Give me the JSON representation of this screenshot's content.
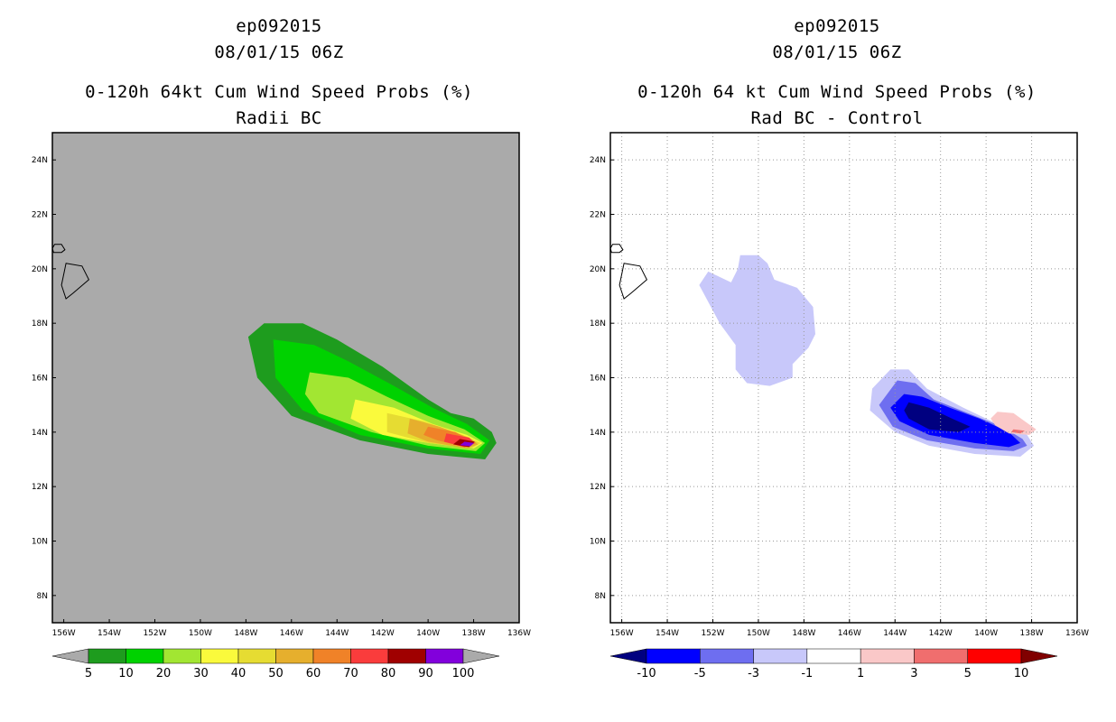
{
  "panels": [
    {
      "storm": "ep092015",
      "datetime": "08/01/15 06Z",
      "title": "0-120h 64kt Cum Wind Speed Probs (%)",
      "subtitle": "Radii BC"
    },
    {
      "storm": "ep092015",
      "datetime": "08/01/15 06Z",
      "title": "0-120h 64 kt Cum Wind Speed Probs (%)",
      "subtitle": "Rad BC - Control"
    }
  ],
  "chart_data": [
    {
      "type": "heatmap",
      "title": "0-120h 64kt Cum Wind Speed Probs (%)",
      "subtitle": "Radii BC",
      "xlim": [
        -156.5,
        -136
      ],
      "ylim": [
        7,
        25
      ],
      "x_ticks": [
        -156,
        -154,
        -152,
        -150,
        -148,
        -146,
        -144,
        -142,
        -140,
        -138,
        -136
      ],
      "x_tick_labels": [
        "156W",
        "154W",
        "152W",
        "150W",
        "148W",
        "146W",
        "144W",
        "142W",
        "140W",
        "138W",
        "136W"
      ],
      "y_ticks": [
        8,
        10,
        12,
        14,
        16,
        18,
        20,
        22,
        24
      ],
      "y_tick_labels": [
        "8N",
        "10N",
        "12N",
        "14N",
        "16N",
        "18N",
        "20N",
        "22N",
        "24N"
      ],
      "grid": false,
      "background": "#aaaaaa",
      "contour_levels": [
        5,
        10,
        20,
        30,
        40,
        50,
        60,
        70,
        80,
        90,
        100
      ],
      "colorbar_labels": [
        "5",
        "10",
        "20",
        "30",
        "40",
        "50",
        "60",
        "70",
        "80",
        "90",
        "100"
      ],
      "colors": [
        "#1e9c1e",
        "#00d200",
        "#a2e632",
        "#fafa3c",
        "#e6dc32",
        "#e6af2d",
        "#f08228",
        "#fa3c3c",
        "#a00000",
        "#8200dc"
      ],
      "extend_color": "#aaaaaa",
      "regions": [
        {
          "level": 5,
          "color": "#1e9c1e",
          "points": [
            [
              -147.2,
              18
            ],
            [
              -145.5,
              18
            ],
            [
              -144,
              17.4
            ],
            [
              -142,
              16.4
            ],
            [
              -140,
              15.2
            ],
            [
              -139,
              14.7
            ],
            [
              -138,
              14.5
            ],
            [
              -137.2,
              14
            ],
            [
              -137,
              13.6
            ],
            [
              -137.5,
              13
            ],
            [
              -140,
              13.2
            ],
            [
              -143,
              13.7
            ],
            [
              -146,
              14.6
            ],
            [
              -147.5,
              16
            ],
            [
              -147.9,
              17.5
            ]
          ]
        },
        {
          "level": 10,
          "color": "#00d200",
          "points": [
            [
              -146.8,
              17.4
            ],
            [
              -145,
              17.2
            ],
            [
              -143.5,
              16.6
            ],
            [
              -141.5,
              15.7
            ],
            [
              -139.8,
              14.9
            ],
            [
              -138.3,
              14.3
            ],
            [
              -137.3,
              13.7
            ],
            [
              -137.7,
              13.2
            ],
            [
              -140,
              13.4
            ],
            [
              -143,
              13.9
            ],
            [
              -145.5,
              14.8
            ],
            [
              -146.7,
              16
            ]
          ]
        },
        {
          "level": 20,
          "color": "#a2e632",
          "points": [
            [
              -145.2,
              16.2
            ],
            [
              -143.5,
              16
            ],
            [
              -141.8,
              15.3
            ],
            [
              -140,
              14.6
            ],
            [
              -138.4,
              14.1
            ],
            [
              -137.5,
              13.6
            ],
            [
              -137.9,
              13.3
            ],
            [
              -140,
              13.5
            ],
            [
              -142.5,
              14
            ],
            [
              -144.8,
              14.7
            ],
            [
              -145.4,
              15.4
            ]
          ]
        },
        {
          "level": 30,
          "color": "#fafa3c",
          "points": [
            [
              -143.2,
              15.2
            ],
            [
              -141.5,
              14.9
            ],
            [
              -139.8,
              14.3
            ],
            [
              -138.3,
              13.9
            ],
            [
              -137.6,
              13.6
            ],
            [
              -138,
              13.4
            ],
            [
              -140,
              13.6
            ],
            [
              -142,
              13.9
            ],
            [
              -143.4,
              14.5
            ]
          ]
        },
        {
          "level": 40,
          "color": "#e6dc32",
          "points": [
            [
              -141.8,
              14.7
            ],
            [
              -140.2,
              14.4
            ],
            [
              -138.5,
              13.9
            ],
            [
              -137.7,
              13.6
            ],
            [
              -138.1,
              13.4
            ],
            [
              -140,
              13.6
            ],
            [
              -141.8,
              14
            ]
          ]
        },
        {
          "level": 50,
          "color": "#e6af2d",
          "points": [
            [
              -140.8,
              14.5
            ],
            [
              -139.5,
              14.2
            ],
            [
              -138.2,
              13.8
            ],
            [
              -137.8,
              13.55
            ],
            [
              -138.3,
              13.4
            ],
            [
              -140,
              13.65
            ],
            [
              -140.9,
              13.95
            ]
          ]
        },
        {
          "level": 60,
          "color": "#f08228",
          "points": [
            [
              -140,
              14.2
            ],
            [
              -138.8,
              14
            ],
            [
              -137.9,
              13.6
            ],
            [
              -138.4,
              13.45
            ],
            [
              -139.6,
              13.7
            ],
            [
              -140.2,
              13.9
            ]
          ]
        },
        {
          "level": 70,
          "color": "#fa3c3c",
          "points": [
            [
              -139.2,
              13.95
            ],
            [
              -138.2,
              13.8
            ],
            [
              -137.95,
              13.6
            ],
            [
              -138.4,
              13.45
            ],
            [
              -139.3,
              13.65
            ]
          ]
        },
        {
          "level": 80,
          "color": "#a00000",
          "points": [
            [
              -138.6,
              13.75
            ],
            [
              -137.95,
              13.65
            ],
            [
              -138.2,
              13.45
            ],
            [
              -138.9,
              13.55
            ]
          ]
        },
        {
          "level": 90,
          "color": "#8200dc",
          "points": [
            [
              -138.4,
              13.65
            ],
            [
              -137.98,
              13.6
            ],
            [
              -138.15,
              13.48
            ],
            [
              -138.6,
              13.52
            ]
          ]
        }
      ]
    },
    {
      "type": "heatmap",
      "title": "0-120h 64 kt Cum Wind Speed Probs (%)",
      "subtitle": "Rad BC - Control",
      "xlim": [
        -156.5,
        -136
      ],
      "ylim": [
        7,
        25
      ],
      "x_ticks": [
        -156,
        -154,
        -152,
        -150,
        -148,
        -146,
        -144,
        -142,
        -140,
        -138,
        -136
      ],
      "x_tick_labels": [
        "156W",
        "154W",
        "152W",
        "150W",
        "148W",
        "146W",
        "144W",
        "142W",
        "140W",
        "138W",
        "136W"
      ],
      "y_ticks": [
        8,
        10,
        12,
        14,
        16,
        18,
        20,
        22,
        24
      ],
      "y_tick_labels": [
        "8N",
        "10N",
        "12N",
        "14N",
        "16N",
        "18N",
        "20N",
        "22N",
        "24N"
      ],
      "grid": true,
      "background": "#ffffff",
      "contour_levels": [
        -10,
        -5,
        -3,
        -1,
        1,
        3,
        5,
        10
      ],
      "colorbar_labels": [
        "-10",
        "-5",
        "-3",
        "-1",
        "1",
        "3",
        "5",
        "10"
      ],
      "colors": [
        "#0000ff",
        "#6e6ef0",
        "#c8c8fa",
        "#ffffff",
        "#fac8c8",
        "#f06e6e",
        "#ff0000"
      ],
      "extend_low_color": "#000080",
      "extend_high_color": "#800000",
      "regions": [
        {
          "level": -1,
          "color": "#c8c8fa",
          "points": [
            [
              -150.8,
              20.5
            ],
            [
              -150,
              20.5
            ],
            [
              -149.6,
              20.2
            ],
            [
              -149.3,
              19.6
            ],
            [
              -148.3,
              19.3
            ],
            [
              -147.6,
              18.6
            ],
            [
              -147.5,
              17.6
            ],
            [
              -147.8,
              17.1
            ],
            [
              -148.5,
              16.5
            ],
            [
              -148.5,
              16
            ],
            [
              -149.5,
              15.7
            ],
            [
              -150.5,
              15.8
            ],
            [
              -151,
              16.3
            ],
            [
              -151,
              17.2
            ],
            [
              -151.7,
              18
            ],
            [
              -152.6,
              19.4
            ],
            [
              -152.2,
              19.9
            ],
            [
              -151.2,
              19.5
            ],
            [
              -150.9,
              20
            ]
          ]
        },
        {
          "level": -1,
          "color": "#c8c8fa",
          "points": [
            [
              -144.2,
              16.3
            ],
            [
              -143.4,
              16.3
            ],
            [
              -142.6,
              15.6
            ],
            [
              -141,
              14.9
            ],
            [
              -139.5,
              14.3
            ],
            [
              -138.2,
              13.9
            ],
            [
              -137.9,
              13.5
            ],
            [
              -138.5,
              13.1
            ],
            [
              -140.5,
              13.2
            ],
            [
              -142.5,
              13.5
            ],
            [
              -144,
              14
            ],
            [
              -145.1,
              14.8
            ],
            [
              -145,
              15.6
            ]
          ]
        },
        {
          "level": -3,
          "color": "#6e6ef0",
          "points": [
            [
              -143.9,
              15.9
            ],
            [
              -143.1,
              15.8
            ],
            [
              -142.3,
              15.2
            ],
            [
              -140.8,
              14.7
            ],
            [
              -139.3,
              14.2
            ],
            [
              -138.4,
              13.75
            ],
            [
              -138.2,
              13.5
            ],
            [
              -138.8,
              13.3
            ],
            [
              -140.5,
              13.4
            ],
            [
              -142.6,
              13.7
            ],
            [
              -144.1,
              14.2
            ],
            [
              -144.7,
              15
            ]
          ]
        },
        {
          "level": -5,
          "color": "#0000ff",
          "points": [
            [
              -143.6,
              15.4
            ],
            [
              -142.8,
              15.3
            ],
            [
              -141.6,
              14.9
            ],
            [
              -140.3,
              14.5
            ],
            [
              -139,
              14
            ],
            [
              -138.5,
              13.6
            ],
            [
              -139,
              13.45
            ],
            [
              -140.5,
              13.6
            ],
            [
              -142.5,
              13.9
            ],
            [
              -143.8,
              14.4
            ],
            [
              -144.2,
              14.9
            ]
          ]
        },
        {
          "level": -10,
          "color": "#000080",
          "points": [
            [
              -143.4,
              15.1
            ],
            [
              -142.5,
              14.9
            ],
            [
              -141.5,
              14.5
            ],
            [
              -140.7,
              14.2
            ],
            [
              -141.2,
              14
            ],
            [
              -142.5,
              14.1
            ],
            [
              -143.4,
              14.5
            ],
            [
              -143.6,
              14.8
            ]
          ]
        },
        {
          "level": 1,
          "color": "#fac8c8",
          "points": [
            [
              -139.5,
              14.75
            ],
            [
              -138.8,
              14.7
            ],
            [
              -137.8,
              14.1
            ],
            [
              -138.1,
              13.9
            ],
            [
              -139,
              13.95
            ],
            [
              -139.6,
              14.25
            ],
            [
              -139.8,
              14.5
            ]
          ]
        },
        {
          "level": 3,
          "color": "#f06e6e",
          "points": [
            [
              -138.8,
              14.1
            ],
            [
              -138.3,
              14.05
            ],
            [
              -138.5,
              13.95
            ],
            [
              -138.9,
              14
            ]
          ]
        }
      ]
    }
  ],
  "coastlines": {
    "hawaii": [
      [
        -155.9,
        20.2
      ],
      [
        -155.2,
        20.1
      ],
      [
        -154.9,
        19.6
      ],
      [
        -155.6,
        19.1
      ],
      [
        -155.9,
        18.9
      ],
      [
        -156.1,
        19.4
      ],
      [
        -156,
        19.8
      ]
    ],
    "maui": [
      [
        -156.4,
        20.9
      ],
      [
        -156.1,
        20.9
      ],
      [
        -155.95,
        20.7
      ],
      [
        -156.1,
        20.6
      ],
      [
        -156.45,
        20.6
      ],
      [
        -156.5,
        20.75
      ]
    ]
  }
}
